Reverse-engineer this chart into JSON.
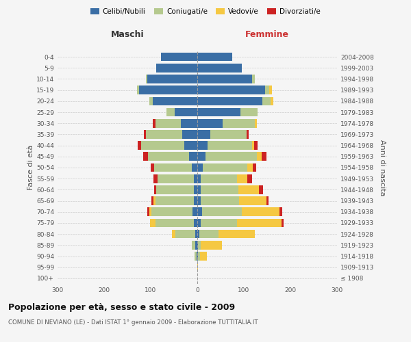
{
  "age_groups": [
    "100+",
    "95-99",
    "90-94",
    "85-89",
    "80-84",
    "75-79",
    "70-74",
    "65-69",
    "60-64",
    "55-59",
    "50-54",
    "45-49",
    "40-44",
    "35-39",
    "30-34",
    "25-29",
    "20-24",
    "15-19",
    "10-14",
    "5-9",
    "0-4"
  ],
  "birth_years": [
    "≤ 1908",
    "1909-1913",
    "1914-1918",
    "1919-1923",
    "1924-1928",
    "1929-1933",
    "1934-1938",
    "1939-1943",
    "1944-1948",
    "1949-1953",
    "1954-1958",
    "1959-1963",
    "1964-1968",
    "1969-1973",
    "1974-1978",
    "1979-1983",
    "1984-1988",
    "1989-1993",
    "1994-1998",
    "1999-2003",
    "2004-2008"
  ],
  "male_celibi": [
    0,
    0,
    2,
    4,
    5,
    8,
    10,
    8,
    8,
    8,
    12,
    18,
    28,
    32,
    35,
    48,
    95,
    125,
    108,
    88,
    78
  ],
  "male_coniugati": [
    0,
    0,
    4,
    8,
    42,
    82,
    88,
    82,
    80,
    78,
    80,
    88,
    92,
    78,
    55,
    18,
    8,
    4,
    2,
    0,
    0
  ],
  "male_vedovi": [
    0,
    0,
    0,
    0,
    8,
    12,
    5,
    4,
    0,
    0,
    0,
    0,
    0,
    0,
    0,
    0,
    0,
    0,
    0,
    0,
    0
  ],
  "male_divorziati": [
    0,
    0,
    0,
    0,
    0,
    0,
    5,
    5,
    5,
    8,
    8,
    10,
    8,
    5,
    5,
    0,
    0,
    0,
    0,
    0,
    0
  ],
  "fem_nubili": [
    0,
    0,
    2,
    2,
    5,
    8,
    10,
    8,
    8,
    8,
    12,
    18,
    22,
    28,
    55,
    92,
    140,
    145,
    118,
    95,
    75
  ],
  "fem_coniugate": [
    0,
    0,
    4,
    6,
    40,
    78,
    85,
    82,
    80,
    78,
    95,
    110,
    95,
    78,
    68,
    38,
    18,
    10,
    5,
    0,
    0
  ],
  "fem_vedove": [
    0,
    2,
    15,
    45,
    78,
    95,
    82,
    58,
    45,
    22,
    12,
    10,
    5,
    0,
    5,
    0,
    5,
    5,
    0,
    0,
    0
  ],
  "fem_divorziate": [
    0,
    0,
    0,
    0,
    0,
    5,
    5,
    5,
    8,
    10,
    8,
    10,
    8,
    5,
    0,
    0,
    0,
    0,
    0,
    0,
    0
  ],
  "colors": {
    "celibi": "#3a6ea5",
    "coniugati": "#b5c98e",
    "vedovi": "#f5c842",
    "divorziati": "#cc2222"
  },
  "xlim": 300,
  "title": "Popolazione per età, sesso e stato civile - 2009",
  "subtitle": "COMUNE DI NEVIANO (LE) - Dati ISTAT 1° gennaio 2009 - Elaborazione TUTTITALIA.IT",
  "ylabel_left": "Fasce di età",
  "ylabel_right": "Anni di nascita",
  "xlabel_left": "Maschi",
  "xlabel_right": "Femmine",
  "legend_labels": [
    "Celibi/Nubili",
    "Coniugati/e",
    "Vedovi/e",
    "Divorziati/e"
  ],
  "background_color": "#f5f5f5",
  "grid_color": "#cccccc",
  "text_color": "#555555",
  "bar_height": 0.78
}
